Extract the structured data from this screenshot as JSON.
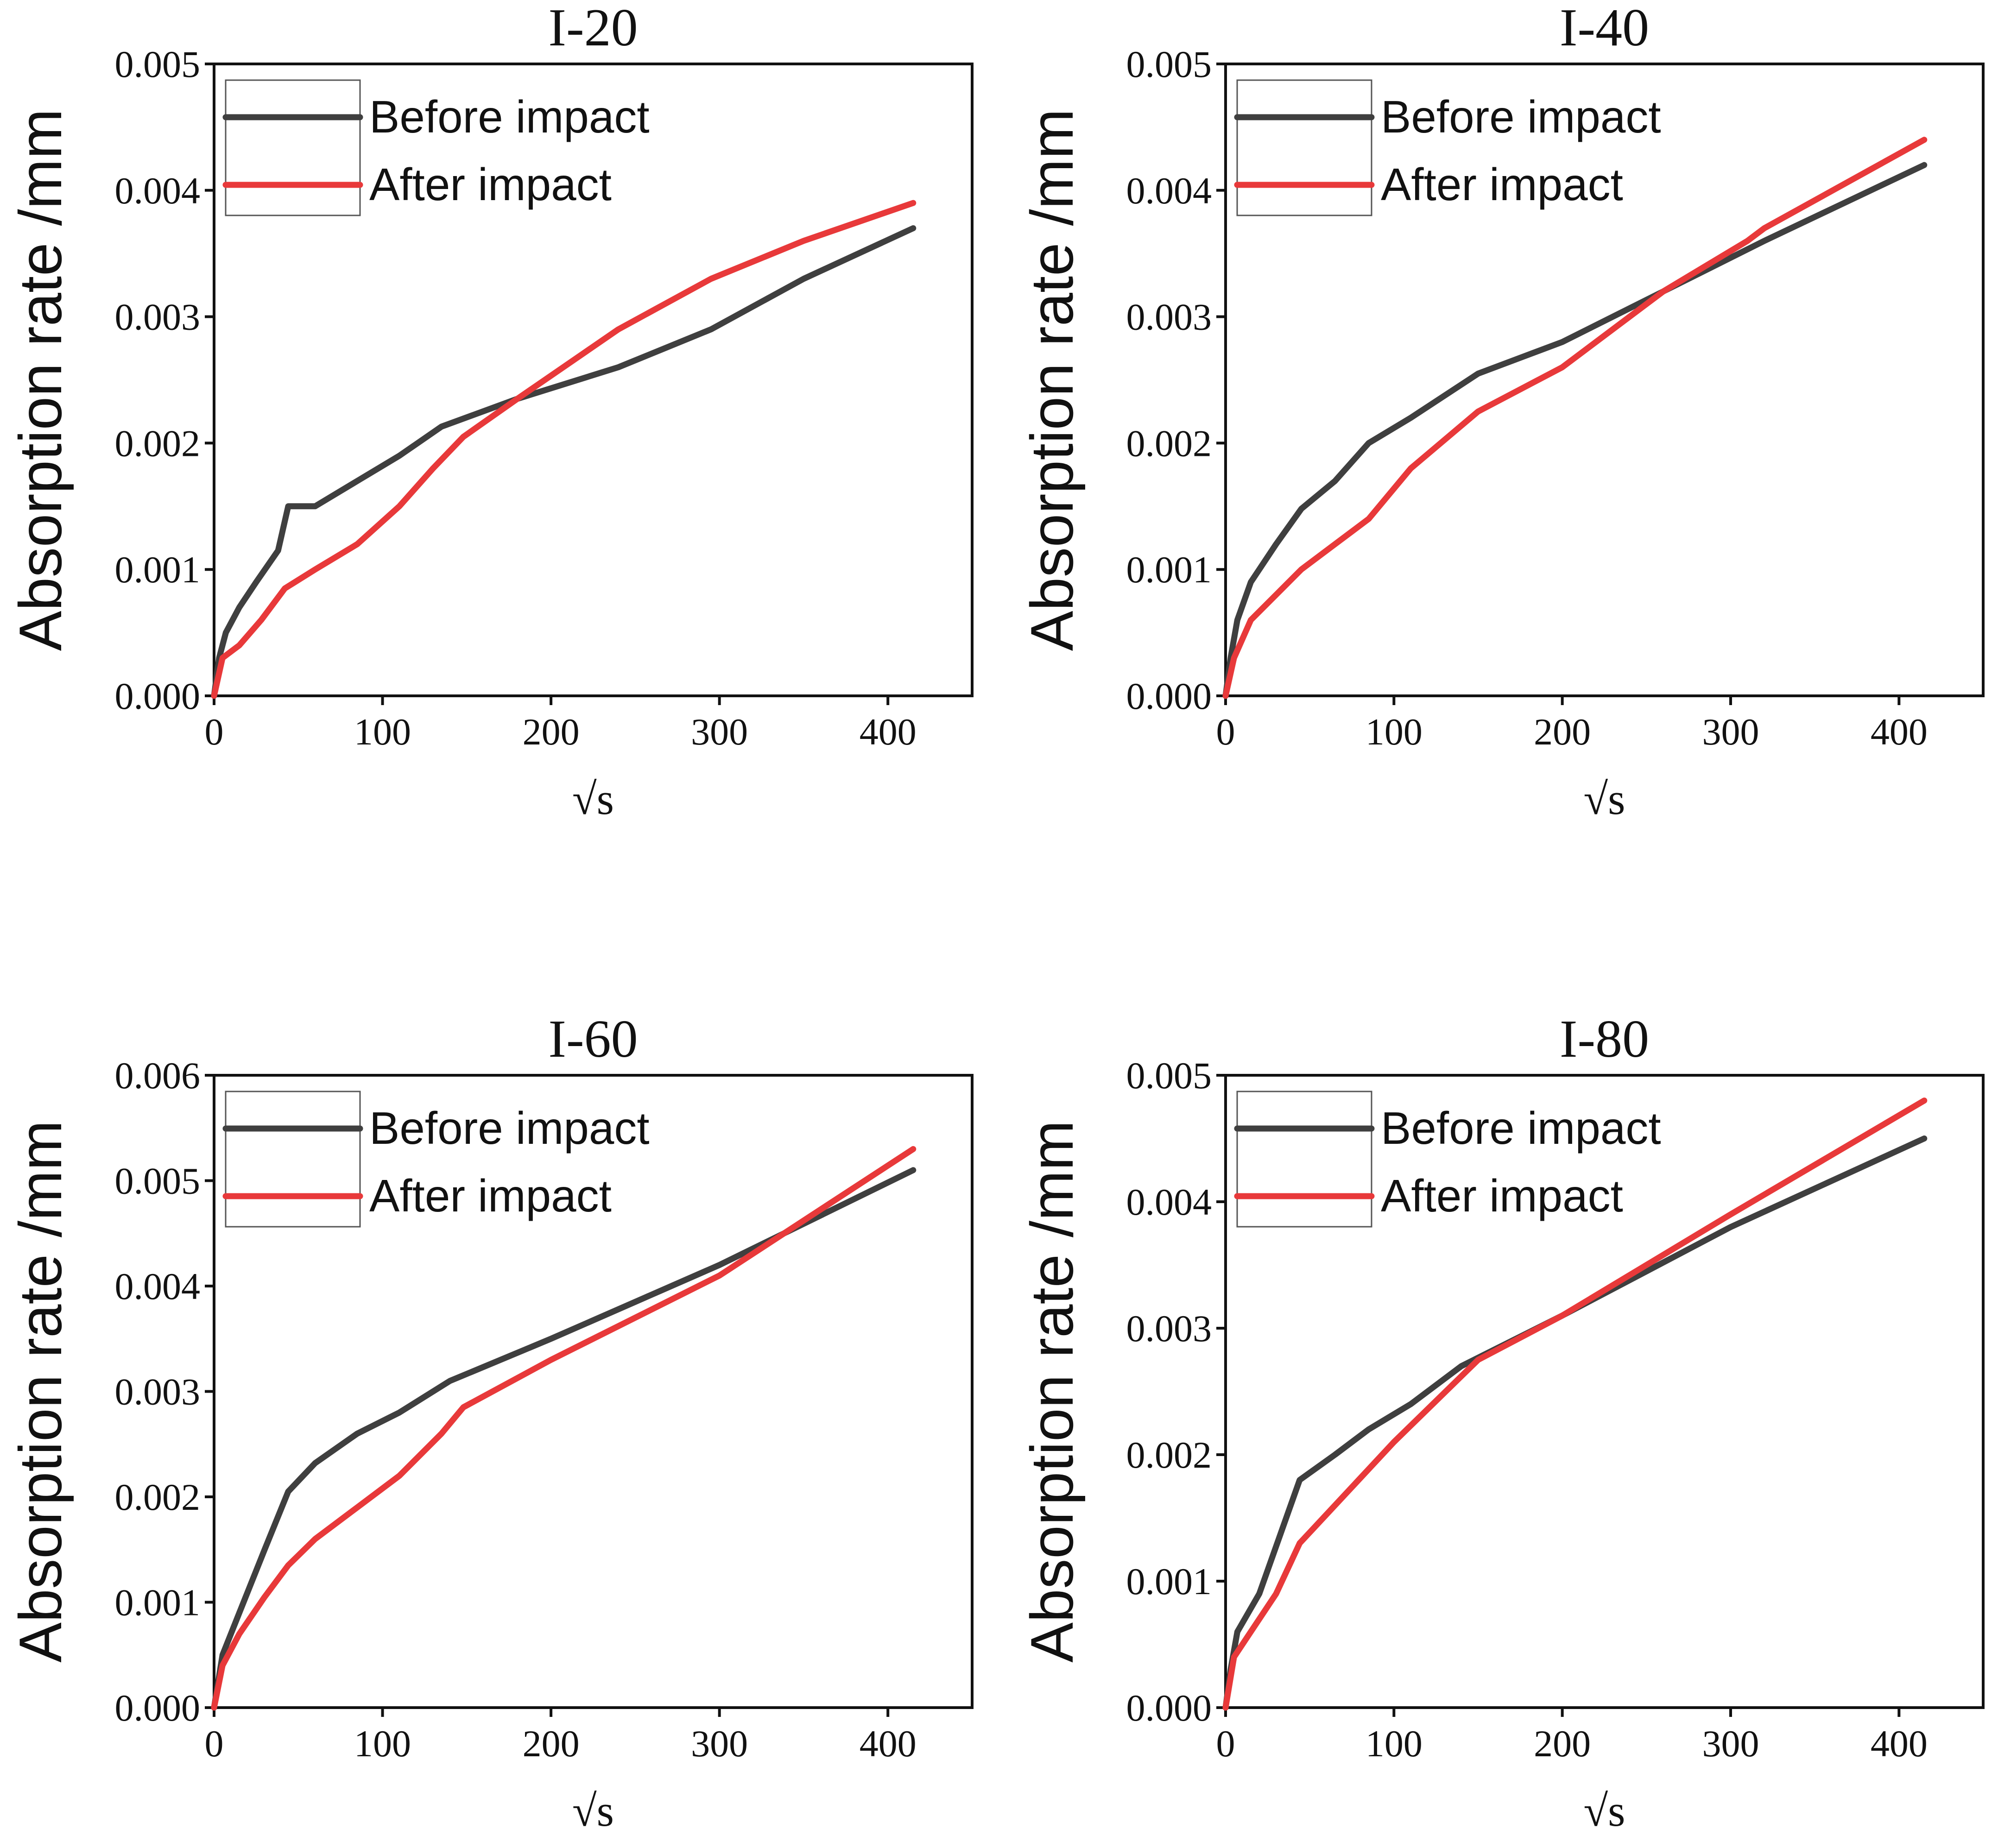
{
  "colors": {
    "before": "#3f3f3f",
    "after": "#e8393a"
  },
  "chart_data": [
    {
      "type": "line",
      "title": "I-20",
      "xlabel": "√s",
      "ylabel": "Absorption rate /mm",
      "xlim": [
        0,
        450
      ],
      "ylim": [
        0,
        0.005
      ],
      "xticks": [
        0,
        100,
        200,
        300,
        400
      ],
      "xtick_labels": [
        "0",
        "100",
        "200",
        "300",
        "400"
      ],
      "yticks": [
        0,
        0.001,
        0.002,
        0.003,
        0.004,
        0.005
      ],
      "ytick_labels": [
        "0.000",
        "0.001",
        "0.002",
        "0.003",
        "0.004",
        "0.005"
      ],
      "legend_position": "top-left",
      "series": [
        {
          "name": "Before impact",
          "color_key": "before",
          "points": [
            [
              0,
              0
            ],
            [
              3,
              0.0003
            ],
            [
              7,
              0.0005
            ],
            [
              15,
              0.0007
            ],
            [
              25,
              0.0009
            ],
            [
              38,
              0.00115
            ],
            [
              44,
              0.0015
            ],
            [
              60,
              0.0015
            ],
            [
              85,
              0.0017
            ],
            [
              110,
              0.0019
            ],
            [
              135,
              0.00213
            ],
            [
              180,
              0.00235
            ],
            [
              240,
              0.0026
            ],
            [
              295,
              0.0029
            ],
            [
              350,
              0.0033
            ],
            [
              415,
              0.0037
            ]
          ]
        },
        {
          "name": "After impact",
          "color_key": "after",
          "points": [
            [
              0,
              0
            ],
            [
              5,
              0.0003
            ],
            [
              15,
              0.0004
            ],
            [
              28,
              0.0006
            ],
            [
              42,
              0.00085
            ],
            [
              60,
              0.001
            ],
            [
              85,
              0.0012
            ],
            [
              110,
              0.0015
            ],
            [
              130,
              0.0018
            ],
            [
              148,
              0.00205
            ],
            [
              180,
              0.00235
            ],
            [
              240,
              0.0029
            ],
            [
              295,
              0.0033
            ],
            [
              350,
              0.0036
            ],
            [
              415,
              0.0039
            ]
          ]
        }
      ]
    },
    {
      "type": "line",
      "title": "I-40",
      "xlabel": "√s",
      "ylabel": "Absorption rate /mm",
      "xlim": [
        0,
        450
      ],
      "ylim": [
        0,
        0.005
      ],
      "xticks": [
        0,
        100,
        200,
        300,
        400
      ],
      "xtick_labels": [
        "0",
        "100",
        "200",
        "300",
        "400"
      ],
      "yticks": [
        0,
        0.001,
        0.002,
        0.003,
        0.004,
        0.005
      ],
      "ytick_labels": [
        "0.000",
        "0.001",
        "0.002",
        "0.003",
        "0.004",
        "0.005"
      ],
      "legend_position": "top-left",
      "series": [
        {
          "name": "Before impact",
          "color_key": "before",
          "points": [
            [
              0,
              0
            ],
            [
              3,
              0.0003
            ],
            [
              7,
              0.0006
            ],
            [
              15,
              0.0009
            ],
            [
              30,
              0.0012
            ],
            [
              45,
              0.00148
            ],
            [
              65,
              0.0017
            ],
            [
              85,
              0.002
            ],
            [
              110,
              0.0022
            ],
            [
              150,
              0.00255
            ],
            [
              200,
              0.0028
            ],
            [
              260,
              0.0032
            ],
            [
              320,
              0.0036
            ],
            [
              415,
              0.0042
            ]
          ]
        },
        {
          "name": "After impact",
          "color_key": "after",
          "points": [
            [
              0,
              0
            ],
            [
              5,
              0.0003
            ],
            [
              15,
              0.0006
            ],
            [
              30,
              0.0008
            ],
            [
              45,
              0.001
            ],
            [
              65,
              0.0012
            ],
            [
              85,
              0.0014
            ],
            [
              110,
              0.0018
            ],
            [
              150,
              0.00225
            ],
            [
              200,
              0.0026
            ],
            [
              260,
              0.0032
            ],
            [
              310,
              0.0036
            ],
            [
              320,
              0.0037
            ],
            [
              415,
              0.0044
            ]
          ]
        }
      ]
    },
    {
      "type": "line",
      "title": "I-60",
      "xlabel": "√s",
      "ylabel": "Absorption rate /mm",
      "xlim": [
        0,
        450
      ],
      "ylim": [
        0,
        0.006
      ],
      "xticks": [
        0,
        100,
        200,
        300,
        400
      ],
      "xtick_labels": [
        "0",
        "100",
        "200",
        "300",
        "400"
      ],
      "yticks": [
        0,
        0.001,
        0.002,
        0.003,
        0.004,
        0.005,
        0.006
      ],
      "ytick_labels": [
        "0.000",
        "0.001",
        "0.002",
        "0.003",
        "0.004",
        "0.005",
        "0.006"
      ],
      "legend_position": "top-left",
      "series": [
        {
          "name": "Before impact",
          "color_key": "before",
          "points": [
            [
              0,
              0
            ],
            [
              5,
              0.0005
            ],
            [
              15,
              0.0009
            ],
            [
              30,
              0.0015
            ],
            [
              44,
              0.00205
            ],
            [
              60,
              0.00232
            ],
            [
              85,
              0.0026
            ],
            [
              110,
              0.0028
            ],
            [
              140,
              0.0031
            ],
            [
              200,
              0.0035
            ],
            [
              300,
              0.0042
            ],
            [
              415,
              0.0051
            ]
          ]
        },
        {
          "name": "After impact",
          "color_key": "after",
          "points": [
            [
              0,
              0
            ],
            [
              5,
              0.0004
            ],
            [
              15,
              0.0007
            ],
            [
              30,
              0.00105
            ],
            [
              44,
              0.00135
            ],
            [
              60,
              0.0016
            ],
            [
              85,
              0.0019
            ],
            [
              110,
              0.0022
            ],
            [
              135,
              0.0026
            ],
            [
              148,
              0.00285
            ],
            [
              200,
              0.0033
            ],
            [
              300,
              0.0041
            ],
            [
              415,
              0.0053
            ]
          ]
        }
      ]
    },
    {
      "type": "line",
      "title": "I-80",
      "xlabel": "√s",
      "ylabel": "Absorption rate /mm",
      "xlim": [
        0,
        450
      ],
      "ylim": [
        0,
        0.005
      ],
      "xticks": [
        0,
        100,
        200,
        300,
        400
      ],
      "xtick_labels": [
        "0",
        "100",
        "200",
        "300",
        "400"
      ],
      "yticks": [
        0,
        0.001,
        0.002,
        0.003,
        0.004,
        0.005
      ],
      "ytick_labels": [
        "0.000",
        "0.001",
        "0.002",
        "0.003",
        "0.004",
        "0.005"
      ],
      "legend_position": "top-left",
      "series": [
        {
          "name": "Before impact",
          "color_key": "before",
          "points": [
            [
              0,
              0
            ],
            [
              3,
              0.0003
            ],
            [
              7,
              0.0006
            ],
            [
              20,
              0.0009
            ],
            [
              44,
              0.0018
            ],
            [
              65,
              0.002
            ],
            [
              85,
              0.0022
            ],
            [
              110,
              0.0024
            ],
            [
              140,
              0.0027
            ],
            [
              200,
              0.0031
            ],
            [
              300,
              0.0038
            ],
            [
              415,
              0.0045
            ]
          ]
        },
        {
          "name": "After impact",
          "color_key": "after",
          "points": [
            [
              0,
              0
            ],
            [
              5,
              0.0004
            ],
            [
              15,
              0.0006
            ],
            [
              30,
              0.0009
            ],
            [
              44,
              0.0013
            ],
            [
              65,
              0.0016
            ],
            [
              100,
              0.0021
            ],
            [
              150,
              0.00275
            ],
            [
              200,
              0.0031
            ],
            [
              300,
              0.0039
            ],
            [
              415,
              0.0048
            ]
          ]
        }
      ]
    }
  ]
}
